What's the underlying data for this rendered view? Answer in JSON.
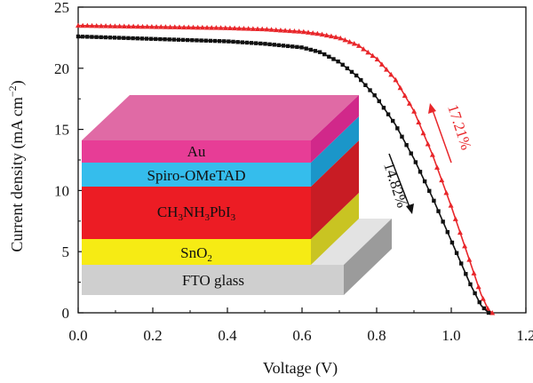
{
  "chart_data": {
    "type": "line",
    "xlabel": "Voltage (V)",
    "ylabel": "Current density (mA cm",
    "ylabel_superscript": "−2",
    "ylabel_close": ")",
    "xlim": [
      0.0,
      1.2
    ],
    "ylim": [
      0,
      25
    ],
    "xticks": [
      "0.0",
      "0.2",
      "0.4",
      "0.6",
      "0.8",
      "1.0",
      "1.2"
    ],
    "yticks": [
      "0",
      "5",
      "10",
      "15",
      "20",
      "25"
    ],
    "grid": false,
    "series": [
      {
        "color": "#e8262a",
        "marker": "triangle",
        "x": [
          0.0,
          0.1,
          0.2,
          0.3,
          0.4,
          0.5,
          0.6,
          0.65,
          0.7,
          0.75,
          0.8,
          0.85,
          0.9,
          0.95,
          1.0,
          1.05,
          1.08,
          1.1,
          1.11
        ],
        "y": [
          23.5,
          23.45,
          23.4,
          23.35,
          23.3,
          23.2,
          23.0,
          22.8,
          22.5,
          21.9,
          20.8,
          19.1,
          16.5,
          12.9,
          8.7,
          4.2,
          1.5,
          0.2,
          0.0
        ]
      },
      {
        "color": "#111111",
        "marker": "square",
        "x": [
          0.0,
          0.1,
          0.2,
          0.3,
          0.4,
          0.5,
          0.6,
          0.65,
          0.7,
          0.75,
          0.8,
          0.85,
          0.9,
          0.95,
          1.0,
          1.05,
          1.08,
          1.1
        ],
        "y": [
          22.6,
          22.5,
          22.4,
          22.3,
          22.2,
          22.0,
          21.7,
          21.3,
          20.5,
          19.3,
          17.6,
          15.4,
          12.6,
          9.4,
          5.9,
          2.4,
          0.6,
          0.0
        ]
      }
    ],
    "annotations": [
      {
        "text": "17.21%",
        "color": "#e8262a",
        "direction": "up"
      },
      {
        "text": "14.82%",
        "color": "#111111",
        "direction": "down"
      }
    ],
    "inset_layers": {
      "au": "Au",
      "spiro": "Spiro-OMeTAD",
      "pvk_parts": [
        "CH",
        "3",
        "NH",
        "3",
        "PbI",
        "3"
      ],
      "sno2_parts": [
        "SnO",
        "2"
      ],
      "fto": "FTO glass"
    },
    "colors": {
      "au": "#e73d96",
      "spiro": "#35bdec",
      "perovskite": "#ec1c24",
      "sno2": "#f6eb14",
      "fto": "#d2d2d2"
    }
  }
}
